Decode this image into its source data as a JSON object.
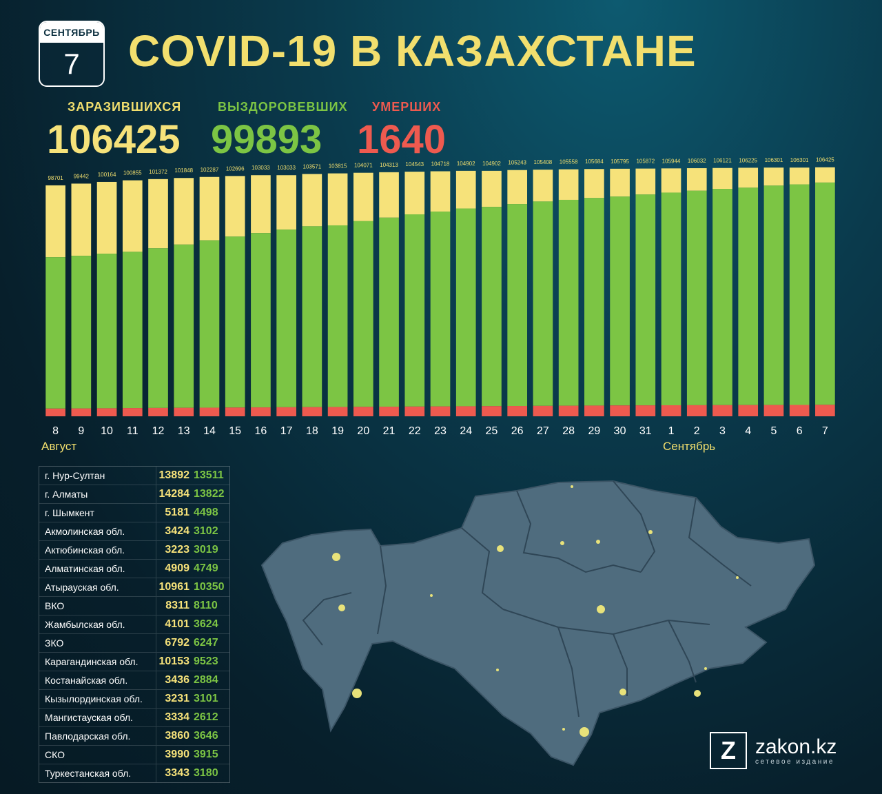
{
  "calendar": {
    "month": "СЕНТЯБРЬ",
    "day": "7"
  },
  "title": "COVID-19 В КАЗАХСТАНЕ",
  "stats": {
    "infected": {
      "label": "ЗАРАЗИВШИХСЯ",
      "value": "106425"
    },
    "recovered": {
      "label": "ВЫЗДОРОВЕВШИХ",
      "value": "99893"
    },
    "deaths": {
      "label": "УМЕРШИХ",
      "value": "1640"
    }
  },
  "colors": {
    "infected": "#f6e27a",
    "recovered": "#7cc544",
    "deaths": "#ee5a4f"
  },
  "chart_data": {
    "type": "bar",
    "categories": [
      "8",
      "9",
      "10",
      "11",
      "12",
      "13",
      "14",
      "15",
      "16",
      "17",
      "18",
      "19",
      "20",
      "21",
      "22",
      "23",
      "24",
      "25",
      "26",
      "27",
      "28",
      "29",
      "30",
      "31",
      "1",
      "2",
      "3",
      "4",
      "5",
      "6",
      "7"
    ],
    "values": [
      98701,
      99442,
      100164,
      100855,
      101372,
      101848,
      102287,
      102696,
      103033,
      103033,
      103571,
      103815,
      104071,
      104313,
      104543,
      104718,
      104902,
      104902,
      105243,
      105408,
      105558,
      105684,
      105795,
      105872,
      105944,
      106032,
      106121,
      106225,
      106301,
      106301,
      106425
    ],
    "recovered_approx": [
      68000,
      68600,
      69500,
      70300,
      71800,
      73400,
      75200,
      76800,
      78300,
      79800,
      81200,
      81600,
      83400,
      84900,
      86300,
      87500,
      88800,
      89500,
      90700,
      91800,
      92500,
      93300,
      93900,
      94800,
      95600,
      96400,
      97200,
      97700,
      98600,
      99100,
      99893
    ],
    "deaths_approx": [
      1100,
      1120,
      1140,
      1170,
      1190,
      1210,
      1230,
      1250,
      1270,
      1290,
      1310,
      1330,
      1350,
      1370,
      1390,
      1410,
      1430,
      1450,
      1470,
      1490,
      1510,
      1530,
      1550,
      1560,
      1570,
      1580,
      1590,
      1600,
      1610,
      1620,
      1640
    ],
    "months": {
      "august": "Август",
      "september": "Сентябрь"
    }
  },
  "regions": [
    {
      "name": "г. Нур-Султан",
      "infected": "13892",
      "recovered": "13511"
    },
    {
      "name": "г. Алматы",
      "infected": "14284",
      "recovered": "13822"
    },
    {
      "name": "г. Шымкент",
      "infected": "5181",
      "recovered": "4498"
    },
    {
      "name": "Акмолинская обл.",
      "infected": "3424",
      "recovered": "3102"
    },
    {
      "name": "Актюбинская обл.",
      "infected": "3223",
      "recovered": "3019"
    },
    {
      "name": "Алматинская обл.",
      "infected": "4909",
      "recovered": "4749"
    },
    {
      "name": "Атырауская обл.",
      "infected": "10961",
      "recovered": "10350"
    },
    {
      "name": "ВКО",
      "infected": "8311",
      "recovered": "8110"
    },
    {
      "name": "Жамбылская обл.",
      "infected": "4101",
      "recovered": "3624"
    },
    {
      "name": "ЗКО",
      "infected": "6792",
      "recovered": "6247"
    },
    {
      "name": "Карагандинская обл.",
      "infected": "10153",
      "recovered": "9523"
    },
    {
      "name": "Костанайская обл.",
      "infected": "3436",
      "recovered": "2884"
    },
    {
      "name": "Кызылординская обл.",
      "infected": "3231",
      "recovered": "3101"
    },
    {
      "name": "Мангистауская обл.",
      "infected": "3334",
      "recovered": "2612"
    },
    {
      "name": "Павлодарская обл.",
      "infected": "3860",
      "recovered": "3646"
    },
    {
      "name": "СКО",
      "infected": "3990",
      "recovered": "3915"
    },
    {
      "name": "Туркестанская обл.",
      "infected": "3343",
      "recovered": "3180"
    }
  ],
  "logo": {
    "mark": "Z",
    "name": "zakon.kz",
    "subtitle": "сетевое издание"
  }
}
